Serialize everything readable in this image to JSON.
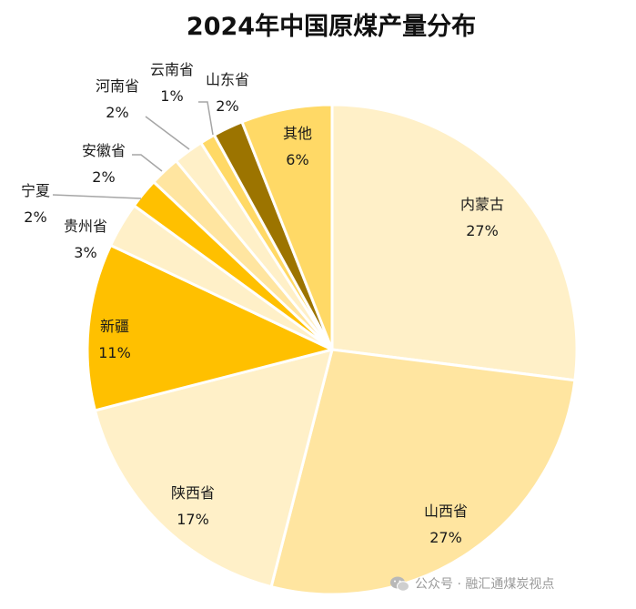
{
  "chart_data": {
    "type": "pie",
    "title": "2024年中国原煤产量分布",
    "unit": "%",
    "start_angle_deg": 0,
    "direction": "clockwise",
    "slices": [
      {
        "name": "内蒙古",
        "value": 27,
        "label": "27%",
        "color": "#FFF0C8"
      },
      {
        "name": "山西省",
        "value": 27,
        "label": "27%",
        "color": "#FFE5A0"
      },
      {
        "name": "陕西省",
        "value": 17,
        "label": "17%",
        "color": "#FFF0C8"
      },
      {
        "name": "新疆",
        "value": 11,
        "label": "11%",
        "color": "#FFC000"
      },
      {
        "name": "贵州省",
        "value": 3,
        "label": "3%",
        "color": "#FFF0C8"
      },
      {
        "name": "宁夏",
        "value": 2,
        "label": "2%",
        "color": "#FFC000"
      },
      {
        "name": "安徽省",
        "value": 2,
        "label": "2%",
        "color": "#FFE5A0"
      },
      {
        "name": "河南省",
        "value": 2,
        "label": "2%",
        "color": "#FFF0C8"
      },
      {
        "name": "云南省",
        "value": 1,
        "label": "1%",
        "color": "#FFD966"
      },
      {
        "name": "山东省",
        "value": 2,
        "label": "2%",
        "color": "#9C7400"
      },
      {
        "name": "其他",
        "value": 6,
        "label": "6%",
        "color": "#FFD966"
      }
    ]
  },
  "watermark": {
    "text": "公众号 · 融汇通煤炭视点",
    "icon": "wechat-icon"
  }
}
